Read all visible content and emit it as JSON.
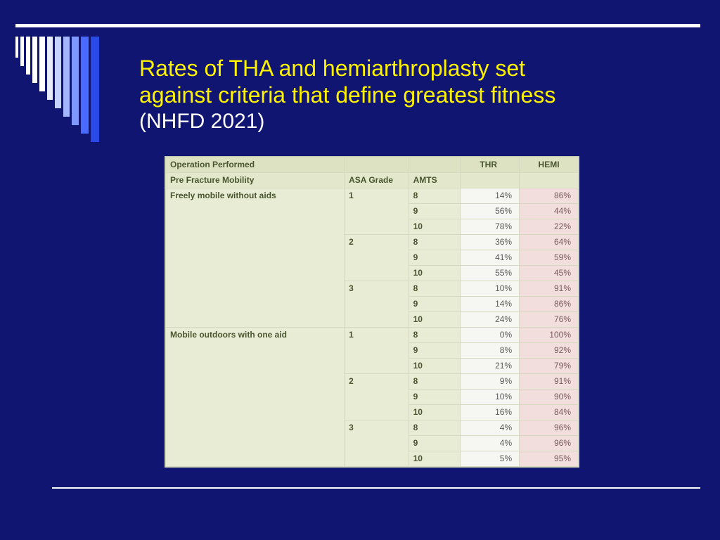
{
  "slide": {
    "background_color": "#0f1570",
    "title_line1": "Rates of THA and hemiarthroplasty set",
    "title_line2": "against criteria that define greatest fitness",
    "subtitle": "(NHFD 2021)",
    "title_color": "#fff200",
    "subtitle_color": "#ffffff",
    "title_fontsize": 32,
    "rule_color": "#ffffff"
  },
  "barcode": {
    "bars": [
      {
        "w": 4,
        "h": 30,
        "color": "#ffffff"
      },
      {
        "w": 5,
        "h": 42,
        "color": "#ffffff"
      },
      {
        "w": 6,
        "h": 54,
        "color": "#ffffff"
      },
      {
        "w": 7,
        "h": 66,
        "color": "#ffffff"
      },
      {
        "w": 8,
        "h": 78,
        "color": "#ffffff"
      },
      {
        "w": 8,
        "h": 90,
        "color": "#e8ecff"
      },
      {
        "w": 9,
        "h": 102,
        "color": "#c6d2ff"
      },
      {
        "w": 9,
        "h": 114,
        "color": "#a3b6ff"
      },
      {
        "w": 10,
        "h": 126,
        "color": "#7f98ff"
      },
      {
        "w": 11,
        "h": 138,
        "color": "#4a6aff"
      },
      {
        "w": 12,
        "h": 150,
        "color": "#2a4ae8"
      }
    ]
  },
  "table": {
    "background_color": "#e8ecd4",
    "header_bg": "#dde3c2",
    "thr_cell_bg": "#f6f7f3",
    "hemi_cell_bg": "#f3dede",
    "text_color": "#4a5530",
    "fontsize": 12,
    "header1": {
      "operation": "Operation Performed",
      "c2": "",
      "c3": "",
      "thr": "THR",
      "hemi": "HEMI"
    },
    "header2": {
      "mobility": "Pre Fracture Mobility",
      "asa": "ASA Grade",
      "amts": "AMTS",
      "thr": "",
      "hemi": ""
    },
    "groups": [
      {
        "mobility": "Freely mobile without aids",
        "asa_blocks": [
          {
            "asa": "1",
            "rows": [
              {
                "amts": "8",
                "thr": "14%",
                "hemi": "86%"
              },
              {
                "amts": "9",
                "thr": "56%",
                "hemi": "44%"
              },
              {
                "amts": "10",
                "thr": "78%",
                "hemi": "22%"
              }
            ]
          },
          {
            "asa": "2",
            "rows": [
              {
                "amts": "8",
                "thr": "36%",
                "hemi": "64%"
              },
              {
                "amts": "9",
                "thr": "41%",
                "hemi": "59%"
              },
              {
                "amts": "10",
                "thr": "55%",
                "hemi": "45%"
              }
            ]
          },
          {
            "asa": "3",
            "rows": [
              {
                "amts": "8",
                "thr": "10%",
                "hemi": "91%"
              },
              {
                "amts": "9",
                "thr": "14%",
                "hemi": "86%"
              },
              {
                "amts": "10",
                "thr": "24%",
                "hemi": "76%"
              }
            ]
          }
        ]
      },
      {
        "mobility": "Mobile outdoors with one aid",
        "asa_blocks": [
          {
            "asa": "1",
            "rows": [
              {
                "amts": "8",
                "thr": "0%",
                "hemi": "100%"
              },
              {
                "amts": "9",
                "thr": "8%",
                "hemi": "92%"
              },
              {
                "amts": "10",
                "thr": "21%",
                "hemi": "79%"
              }
            ]
          },
          {
            "asa": "2",
            "rows": [
              {
                "amts": "8",
                "thr": "9%",
                "hemi": "91%"
              },
              {
                "amts": "9",
                "thr": "10%",
                "hemi": "90%"
              },
              {
                "amts": "10",
                "thr": "16%",
                "hemi": "84%"
              }
            ]
          },
          {
            "asa": "3",
            "rows": [
              {
                "amts": "8",
                "thr": "4%",
                "hemi": "96%"
              },
              {
                "amts": "9",
                "thr": "4%",
                "hemi": "96%"
              },
              {
                "amts": "10",
                "thr": "5%",
                "hemi": "95%"
              }
            ]
          }
        ]
      }
    ]
  }
}
